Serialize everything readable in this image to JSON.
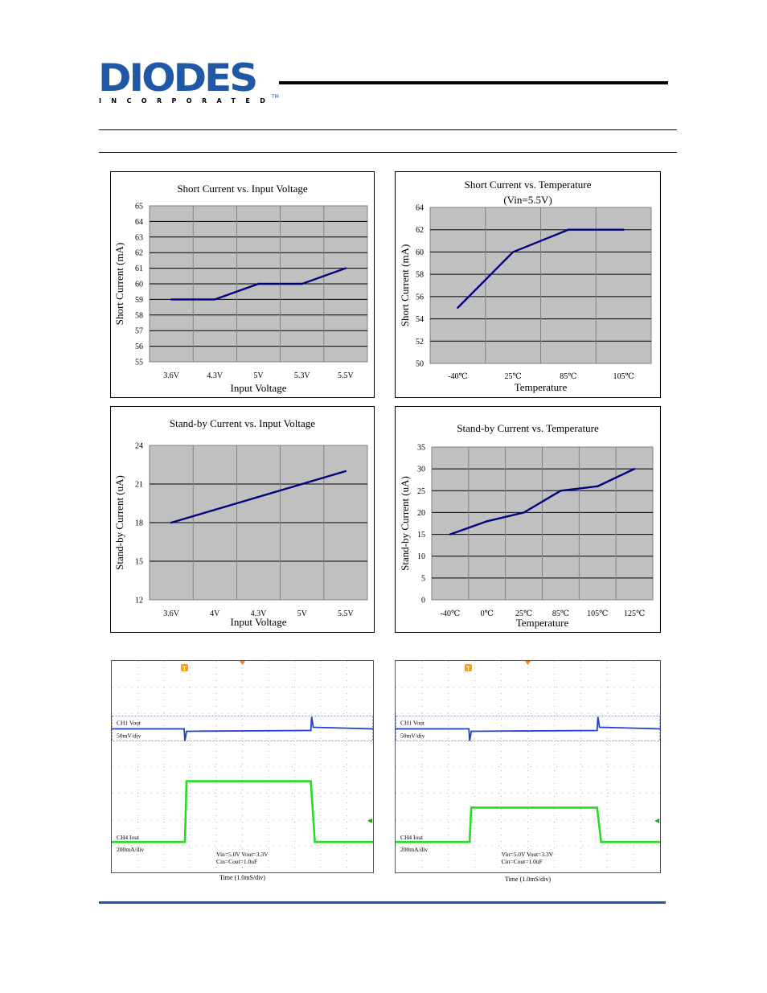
{
  "header": {
    "logo_text": "DIODES",
    "logo_subtext": "INCORPORATED",
    "logo_tm": "TM"
  },
  "chart_data": [
    {
      "type": "line",
      "title": "Short Current vs. Input Voltage",
      "xlabel": "Input Voltage",
      "ylabel": "Short Current (mA)",
      "categories": [
        "3.6V",
        "4.3V",
        "5V",
        "5.3V",
        "5.5V"
      ],
      "values": [
        59,
        59,
        60,
        60,
        61
      ],
      "y_ticks": [
        "55",
        "56",
        "57",
        "58",
        "59",
        "60",
        "61",
        "62",
        "63",
        "64",
        "65"
      ],
      "ylim": [
        55,
        65
      ],
      "grid": true,
      "line_color": "#000080",
      "plot_bg": "#c0c0c0"
    },
    {
      "type": "line",
      "title": "Short Current vs. Temperature",
      "subtitle": "(Vin=5.5V)",
      "xlabel": "Temperature",
      "ylabel": "Short Current (mA)",
      "categories": [
        "-40℃",
        "25℃",
        "85℃",
        "105℃"
      ],
      "values": [
        55,
        60,
        62,
        62
      ],
      "y_ticks": [
        "50",
        "52",
        "54",
        "56",
        "58",
        "60",
        "62",
        "64"
      ],
      "ylim": [
        50,
        64
      ],
      "grid": true,
      "line_color": "#000080",
      "plot_bg": "#c0c0c0"
    },
    {
      "type": "line",
      "title": "Stand-by Current vs. Input Voltage",
      "xlabel": "Input Voltage",
      "ylabel": "Stand-by Current (uA)",
      "categories": [
        "3.6V",
        "4V",
        "4.3V",
        "5V",
        "5.5V"
      ],
      "values": [
        18,
        19,
        20,
        21,
        22
      ],
      "y_ticks": [
        "12",
        "15",
        "18",
        "21",
        "24"
      ],
      "ylim": [
        12,
        24
      ],
      "grid": true,
      "line_color": "#000080",
      "plot_bg": "#c0c0c0"
    },
    {
      "type": "line",
      "title": "Stand-by Current vs. Temperature",
      "xlabel": "Temperature",
      "ylabel": "Stand-by Current (uA)",
      "categories": [
        "-40℃",
        "0℃",
        "25℃",
        "85℃",
        "105℃",
        "125℃"
      ],
      "values": [
        15,
        18,
        20,
        25,
        26,
        30
      ],
      "y_ticks": [
        "0",
        "5",
        "10",
        "15",
        "20",
        "25",
        "30",
        "35"
      ],
      "ylim": [
        0,
        35
      ],
      "grid": true,
      "line_color": "#000080",
      "plot_bg": "#c0c0c0"
    }
  ],
  "scopes": [
    {
      "ch1_label": "CH1  Vout",
      "ch1_scale": "50mV/div",
      "ch4_label": "CH4  Iout",
      "ch4_scale": "200mA/div",
      "cond1": "Vin=5.0V  Vout=3.3V",
      "cond2": "Cin=Cout=1.0uF",
      "time_label": "Time (1.0mS/div)",
      "trigger_label": "T",
      "ch1_color": "#1f3fd0",
      "ch4_color": "#22dd22",
      "pulse_start_div": 2.8,
      "pulse_end_div": 7.65,
      "pulse_level_div": 2.3
    },
    {
      "ch1_label": "CH1  Vout",
      "ch1_scale": "50mV/div",
      "ch4_label": "CH4  Iout",
      "ch4_scale": "200mA/div",
      "cond1": "Vin=5.0V  Vout=3.3V",
      "cond2": "Cin=Cout=1.0uF",
      "time_label": "Time (1.0mS/div)",
      "trigger_label": "T",
      "ch1_color": "#1f3fd0",
      "ch4_color": "#22dd22",
      "pulse_start_div": 2.8,
      "pulse_end_div": 7.65,
      "pulse_level_div": 1.3
    }
  ]
}
